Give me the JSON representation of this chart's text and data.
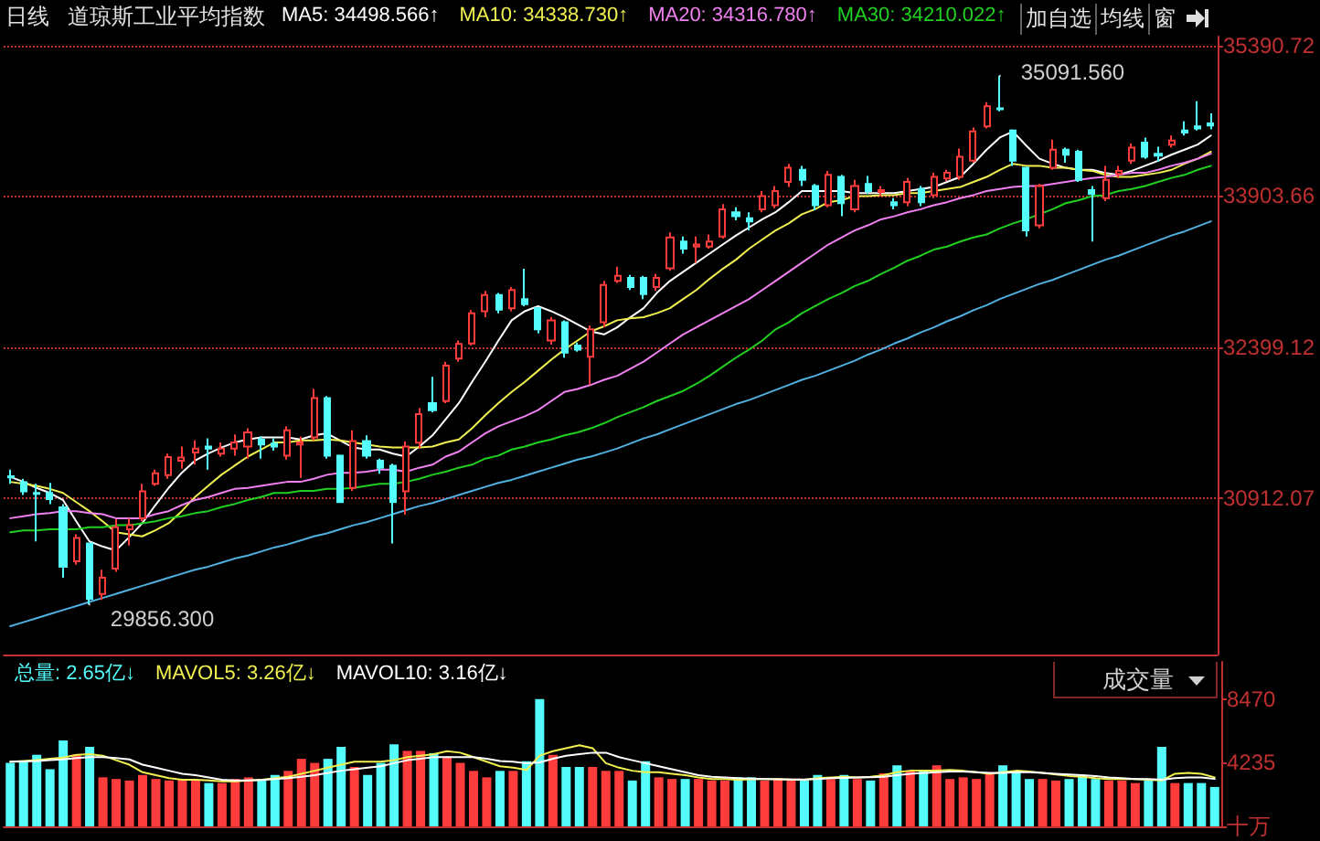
{
  "chart_data": [
    {
      "type": "candlestick",
      "title": "道琼斯工业平均指数",
      "subtitle": "日线",
      "categories": [
        null,
        null,
        null,
        null,
        null,
        null,
        null,
        null,
        null,
        null,
        null,
        null,
        null,
        null,
        null,
        null,
        null,
        null,
        null,
        null,
        null,
        null,
        null,
        null,
        null,
        null,
        null,
        null,
        null,
        null,
        null,
        null,
        null,
        null,
        null,
        null,
        null,
        null,
        null,
        null,
        null,
        null,
        null,
        null,
        null,
        null,
        null,
        null,
        null,
        null,
        null,
        null,
        null,
        null,
        null,
        null,
        null,
        null,
        null,
        null,
        null,
        null,
        null,
        null,
        null,
        null,
        null,
        null,
        null,
        null,
        null,
        null,
        null,
        null,
        null,
        null,
        null,
        null,
        null,
        null,
        null,
        null,
        null,
        null,
        null,
        null,
        null,
        null,
        null,
        null,
        null,
        null
      ],
      "ohlc": [
        [
          31125,
          31190,
          31050,
          31115
        ],
        [
          31066,
          31100,
          30940,
          30977
        ],
        [
          30960,
          31050,
          30480,
          30950
        ],
        [
          30960,
          31060,
          30850,
          30900
        ],
        [
          30817,
          30850,
          30120,
          30230
        ],
        [
          30283,
          30550,
          30250,
          30515
        ],
        [
          30460,
          30470,
          29856.3,
          29910
        ],
        [
          29960,
          30200,
          29900,
          30120
        ],
        [
          30212,
          30700,
          30180,
          30620
        ],
        [
          30600,
          30710,
          30440,
          30640
        ],
        [
          30710,
          31050,
          30680,
          30977
        ],
        [
          31050,
          31190,
          31030,
          31155
        ],
        [
          31137,
          31350,
          31100,
          31316
        ],
        [
          31280,
          31420,
          31200,
          31310
        ],
        [
          31360,
          31480,
          31240,
          31400
        ],
        [
          31420,
          31500,
          31190,
          31400
        ],
        [
          31350,
          31460,
          31320,
          31400
        ],
        [
          31400,
          31540,
          31330,
          31460
        ],
        [
          31420,
          31600,
          31300,
          31560
        ],
        [
          31490,
          31520,
          31300,
          31440
        ],
        [
          31450,
          31500,
          31380,
          31420
        ],
        [
          31330,
          31620,
          31290,
          31580
        ],
        [
          31440,
          31520,
          31110,
          31460
        ],
        [
          31510,
          31990,
          31480,
          31900
        ],
        [
          31900,
          31920,
          31300,
          31330
        ],
        [
          31330,
          31340,
          30860,
          30870
        ],
        [
          31010,
          31580,
          30980,
          31475
        ],
        [
          31475,
          31530,
          31300,
          31330
        ],
        [
          31280,
          31300,
          31150,
          31210
        ],
        [
          31230,
          31250,
          30460,
          30870
        ],
        [
          30977,
          31470,
          30746,
          31420
        ],
        [
          31458,
          31800,
          31400,
          31740
        ],
        [
          31850,
          32110,
          31760,
          31780
        ],
        [
          31870,
          32260,
          31850,
          32220
        ],
        [
          32290,
          32470,
          32260,
          32435
        ],
        [
          32440,
          32770,
          32420,
          32740
        ],
        [
          32760,
          32960,
          32700,
          32920
        ],
        [
          32920,
          32940,
          32740,
          32775
        ],
        [
          32790,
          33000,
          32760,
          32970
        ],
        [
          32880,
          33180,
          32810,
          32830
        ],
        [
          32790,
          32800,
          32540,
          32580
        ],
        [
          32470,
          32700,
          32430,
          32670
        ],
        [
          32650,
          32670,
          32300,
          32350
        ],
        [
          32420,
          32450,
          32360,
          32380
        ],
        [
          32310,
          32620,
          32030,
          32580
        ],
        [
          32650,
          33060,
          32600,
          33020
        ],
        [
          33060,
          33200,
          33040,
          33110
        ],
        [
          33090,
          33120,
          32970,
          33000
        ],
        [
          33090,
          33110,
          32880,
          32930
        ],
        [
          33000,
          33130,
          32960,
          33090
        ],
        [
          33185,
          33540,
          33160,
          33490
        ],
        [
          33450,
          33500,
          33330,
          33380
        ],
        [
          33400,
          33500,
          33240,
          33420
        ],
        [
          33400,
          33520,
          33380,
          33450
        ],
        [
          33500,
          33820,
          33480,
          33770
        ],
        [
          33740,
          33790,
          33660,
          33700
        ],
        [
          33680,
          33740,
          33560,
          33650
        ],
        [
          33770,
          33950,
          33740,
          33900
        ],
        [
          33810,
          34000,
          33780,
          33950
        ],
        [
          34040,
          34220,
          33990,
          34180
        ],
        [
          34160,
          34200,
          34000,
          34060
        ],
        [
          34000,
          34020,
          33760,
          33810
        ],
        [
          33810,
          34150,
          33790,
          34110
        ],
        [
          34090,
          34110,
          33700,
          33830
        ],
        [
          33770,
          34060,
          33740,
          34000
        ],
        [
          34020,
          34100,
          33920,
          33950
        ],
        [
          33940,
          34000,
          33900,
          33960
        ],
        [
          33840,
          33880,
          33770,
          33810
        ],
        [
          33840,
          34080,
          33800,
          34040
        ],
        [
          33970,
          34000,
          33800,
          33840
        ],
        [
          33910,
          34130,
          33880,
          34090
        ],
        [
          34075,
          34160,
          34050,
          34130
        ],
        [
          34090,
          34370,
          34060,
          34290
        ],
        [
          34250,
          34580,
          34230,
          34540
        ],
        [
          34590,
          34830,
          34570,
          34790
        ],
        [
          34770,
          35091.56,
          34740,
          34760
        ],
        [
          34550,
          34560,
          34200,
          34250
        ],
        [
          34180,
          34190,
          33500,
          33560
        ],
        [
          33610,
          34020,
          33580,
          34000
        ],
        [
          34180,
          34460,
          34160,
          34360
        ],
        [
          34360,
          34380,
          34230,
          34310
        ],
        [
          34340,
          34360,
          34040,
          34060
        ],
        [
          33960,
          34000,
          33450,
          33920
        ],
        [
          33880,
          34200,
          33850,
          34060
        ],
        [
          34120,
          34200,
          34080,
          34150
        ],
        [
          34250,
          34420,
          34220,
          34380
        ],
        [
          34430,
          34480,
          34270,
          34290
        ],
        [
          34320,
          34390,
          34240,
          34300
        ],
        [
          34410,
          34500,
          34380,
          34450
        ],
        [
          34550,
          34640,
          34500,
          34530
        ],
        [
          34590,
          34840,
          34550,
          34570
        ],
        [
          34620,
          34720,
          34560,
          34600
        ]
      ],
      "colors": [
        "#54fcfc",
        "#54fcfc",
        "#54fcfc",
        "#54fcfc",
        "#54fcfc",
        "#ff3c3c",
        "#54fcfc",
        "#ff3c3c",
        "#ff3c3c",
        "#ff3c3c",
        "#ff3c3c",
        "#ff3c3c",
        "#ff3c3c",
        "#ff3c3c",
        "#ff3c3c",
        "#54fcfc",
        "#ff3c3c",
        "#ff3c3c",
        "#ff3c3c",
        "#54fcfc",
        "#54fcfc",
        "#ff3c3c",
        "#ff3c3c",
        "#ff3c3c",
        "#54fcfc",
        "#54fcfc",
        "#ff3c3c",
        "#54fcfc",
        "#54fcfc",
        "#54fcfc",
        "#ff3c3c",
        "#ff3c3c",
        "#54fcfc",
        "#ff3c3c",
        "#ff3c3c",
        "#ff3c3c",
        "#ff3c3c",
        "#54fcfc",
        "#ff3c3c",
        "#54fcfc",
        "#54fcfc",
        "#ff3c3c",
        "#54fcfc",
        "#54fcfc",
        "#ff3c3c",
        "#ff3c3c",
        "#ff3c3c",
        "#54fcfc",
        "#54fcfc",
        "#ff3c3c",
        "#ff3c3c",
        "#54fcfc",
        "#ff3c3c",
        "#ff3c3c",
        "#ff3c3c",
        "#54fcfc",
        "#54fcfc",
        "#ff3c3c",
        "#ff3c3c",
        "#ff3c3c",
        "#54fcfc",
        "#54fcfc",
        "#ff3c3c",
        "#54fcfc",
        "#ff3c3c",
        "#54fcfc",
        "#ff3c3c",
        "#54fcfc",
        "#ff3c3c",
        "#54fcfc",
        "#ff3c3c",
        "#ff3c3c",
        "#ff3c3c",
        "#ff3c3c",
        "#ff3c3c",
        "#54fcfc",
        "#54fcfc",
        "#54fcfc",
        "#ff3c3c",
        "#ff3c3c",
        "#54fcfc",
        "#54fcfc",
        "#54fcfc",
        "#ff3c3c",
        "#ff3c3c",
        "#ff3c3c",
        "#54fcfc",
        "#54fcfc",
        "#ff3c3c",
        "#54fcfc",
        "#54fcfc",
        "#54fcfc"
      ],
      "series": [
        {
          "name": "MA5: 34498.566↑",
          "type": "line",
          "color": "#ffffff",
          "values": [
            31120,
            31070,
            31010,
            30960,
            30890,
            30680,
            30480,
            30430,
            30390,
            30520,
            30660,
            30840,
            31010,
            31160,
            31280,
            31350,
            31410,
            31460,
            31490,
            31510,
            31510,
            31510,
            31490,
            31530,
            31550,
            31480,
            31410,
            31390,
            31390,
            31350,
            31320,
            31420,
            31530,
            31690,
            31850,
            32060,
            32260,
            32470,
            32670,
            32760,
            32810,
            32760,
            32700,
            32630,
            32560,
            32530,
            32600,
            32700,
            32790,
            32940,
            33060,
            33150,
            33240,
            33330,
            33420,
            33510,
            33590,
            33670,
            33740,
            33840,
            33950,
            33950,
            33950,
            33950,
            33930,
            33930,
            33930,
            33930,
            33950,
            33970,
            33990,
            34040,
            34090,
            34220,
            34360,
            34480,
            34540,
            34400,
            34270,
            34220,
            34180,
            34160,
            34160,
            34130,
            34110,
            34150,
            34200,
            34250,
            34310,
            34360,
            34410,
            34500
          ]
        },
        {
          "name": "MA10: 34338.730↑",
          "type": "line",
          "color": "#f0f050",
          "values": [
            31070,
            31050,
            31030,
            31000,
            30960,
            30870,
            30780,
            30680,
            30570,
            30550,
            30530,
            30590,
            30660,
            30780,
            30920,
            31030,
            31140,
            31230,
            31320,
            31390,
            31460,
            31460,
            31480,
            31480,
            31490,
            31480,
            31460,
            31440,
            31420,
            31410,
            31410,
            31410,
            31420,
            31460,
            31490,
            31600,
            31730,
            31850,
            31960,
            32060,
            32170,
            32280,
            32380,
            32470,
            32560,
            32610,
            32670,
            32690,
            32700,
            32740,
            32790,
            32880,
            32970,
            33080,
            33180,
            33270,
            33380,
            33470,
            33560,
            33630,
            33720,
            33770,
            33840,
            33860,
            33900,
            33900,
            33910,
            33910,
            33930,
            33930,
            33950,
            33970,
            33990,
            34040,
            34090,
            34160,
            34220,
            34200,
            34200,
            34180,
            34180,
            34160,
            34150,
            34110,
            34090,
            34090,
            34110,
            34130,
            34160,
            34220,
            34270,
            34340
          ]
        },
        {
          "name": "MA20: 34316.780↑",
          "type": "line",
          "color": "#f080f0",
          "values": [
            30710,
            30730,
            30750,
            30760,
            30780,
            30780,
            30760,
            30750,
            30710,
            30710,
            30710,
            30750,
            30780,
            30840,
            30890,
            30920,
            30960,
            31000,
            31010,
            31030,
            31050,
            31070,
            31070,
            31100,
            31140,
            31160,
            31160,
            31170,
            31190,
            31190,
            31170,
            31210,
            31240,
            31320,
            31370,
            31460,
            31550,
            31620,
            31670,
            31720,
            31780,
            31870,
            31960,
            31990,
            32030,
            32080,
            32120,
            32190,
            32260,
            32350,
            32440,
            32530,
            32600,
            32670,
            32740,
            32810,
            32880,
            32970,
            33060,
            33150,
            33240,
            33330,
            33420,
            33490,
            33560,
            33610,
            33670,
            33700,
            33740,
            33770,
            33810,
            33840,
            33880,
            33910,
            33950,
            33970,
            33990,
            34000,
            34000,
            34020,
            34040,
            34060,
            34080,
            34090,
            34110,
            34130,
            34130,
            34160,
            34200,
            34230,
            34270,
            34320
          ]
        },
        {
          "name": "MA30: 34210.022↑",
          "type": "line",
          "color": "#20d020",
          "values": [
            30570,
            30590,
            30590,
            30600,
            30600,
            30600,
            30620,
            30620,
            30640,
            30640,
            30660,
            30680,
            30710,
            30730,
            30760,
            30780,
            30820,
            30850,
            30890,
            30920,
            30960,
            30960,
            30980,
            30980,
            31000,
            31000,
            31010,
            31030,
            31050,
            31050,
            31070,
            31100,
            31140,
            31170,
            31210,
            31240,
            31300,
            31330,
            31390,
            31420,
            31460,
            31490,
            31530,
            31560,
            31600,
            31650,
            31710,
            31760,
            31810,
            31870,
            31920,
            31970,
            32040,
            32120,
            32210,
            32300,
            32380,
            32470,
            32580,
            32650,
            32740,
            32810,
            32880,
            32940,
            33010,
            33060,
            33130,
            33190,
            33260,
            33310,
            33370,
            33400,
            33450,
            33490,
            33520,
            33580,
            33630,
            33670,
            33720,
            33770,
            33830,
            33860,
            33900,
            33910,
            33950,
            33970,
            34000,
            34040,
            34080,
            34110,
            34160,
            34200
          ]
        },
        {
          "type": "line",
          "color": "#50b0e0",
          "values": [
            29640,
            29680,
            29720,
            29760,
            29800,
            29840,
            29880,
            29920,
            29960,
            30000,
            30040,
            30080,
            30120,
            30160,
            30200,
            30230,
            30270,
            30310,
            30340,
            30380,
            30420,
            30450,
            30490,
            30530,
            30560,
            30600,
            30640,
            30670,
            30710,
            30750,
            30790,
            30830,
            30860,
            30900,
            30940,
            30980,
            31020,
            31060,
            31090,
            31130,
            31170,
            31210,
            31250,
            31290,
            31320,
            31360,
            31400,
            31450,
            31500,
            31540,
            31590,
            31640,
            31690,
            31740,
            31790,
            31840,
            31880,
            31930,
            31980,
            32030,
            32080,
            32120,
            32170,
            32220,
            32270,
            32330,
            32380,
            32440,
            32490,
            32550,
            32600,
            32660,
            32710,
            32770,
            32820,
            32880,
            32930,
            32980,
            33030,
            33070,
            33120,
            33170,
            33220,
            33270,
            33310,
            33360,
            33410,
            33460,
            33510,
            33550,
            33600,
            33650
          ]
        }
      ],
      "ylim": [
        29360,
        35480
      ],
      "yticks": [
        30912.07,
        32399.12,
        33903.66,
        35390.72
      ],
      "grid": "y",
      "legend": "top left",
      "tick_labels": "y",
      "line_style": "solid",
      "annotations": [
        "35091.560",
        "29856.300",
        "加自选",
        "均线",
        "窗"
      ]
    },
    {
      "type": "bar",
      "categories": [
        null,
        null,
        null,
        null,
        null,
        null,
        null,
        null,
        null,
        null,
        null,
        null,
        null,
        null,
        null,
        null,
        null,
        null,
        null,
        null,
        null,
        null,
        null,
        null,
        null,
        null,
        null,
        null,
        null,
        null,
        null,
        null,
        null,
        null,
        null,
        null,
        null,
        null,
        null,
        null,
        null,
        null,
        null,
        null,
        null,
        null,
        null,
        null,
        null,
        null,
        null,
        null,
        null,
        null,
        null,
        null,
        null,
        null,
        null,
        null,
        null,
        null,
        null,
        null,
        null,
        null,
        null,
        null,
        null,
        null,
        null,
        null,
        null,
        null,
        null,
        null,
        null,
        null,
        null,
        null,
        null,
        null,
        null,
        null,
        null,
        null,
        null,
        null,
        null,
        null,
        null,
        null
      ],
      "series": [
        {
          "name": "总量: 2.65亿↓",
          "values": [
            4220,
            4330,
            4760,
            3800,
            5720,
            4760,
            5290,
            3260,
            3150,
            3050,
            3420,
            3150,
            3050,
            3150,
            3050,
            2880,
            2880,
            3150,
            3260,
            3150,
            3420,
            3690,
            4490,
            4220,
            4490,
            5290,
            3950,
            3420,
            4220,
            5460,
            5020,
            5020,
            4870,
            4650,
            4220,
            3690,
            3260,
            3690,
            3690,
            4330,
            8470,
            4760,
            3950,
            3950,
            3950,
            3690,
            3690,
            3050,
            4330,
            3260,
            3150,
            3150,
            3150,
            3050,
            3050,
            3260,
            3260,
            3050,
            3150,
            3050,
            3050,
            3420,
            3150,
            3420,
            3150,
            3050,
            3530,
            4060,
            3690,
            3690,
            4060,
            3150,
            3260,
            3150,
            3590,
            4060,
            3690,
            3150,
            3150,
            3050,
            3150,
            3420,
            3150,
            3050,
            3050,
            2880,
            3050,
            5290,
            2880,
            2880,
            2880,
            2620
          ],
          "colors": [
            "#54fcfc",
            "#54fcfc",
            "#54fcfc",
            "#54fcfc",
            "#54fcfc",
            "#ff3c3c",
            "#54fcfc",
            "#ff3c3c",
            "#ff3c3c",
            "#ff3c3c",
            "#ff3c3c",
            "#ff3c3c",
            "#ff3c3c",
            "#ff3c3c",
            "#ff3c3c",
            "#54fcfc",
            "#ff3c3c",
            "#ff3c3c",
            "#ff3c3c",
            "#54fcfc",
            "#54fcfc",
            "#ff3c3c",
            "#ff3c3c",
            "#ff3c3c",
            "#54fcfc",
            "#54fcfc",
            "#ff3c3c",
            "#54fcfc",
            "#54fcfc",
            "#54fcfc",
            "#ff3c3c",
            "#ff3c3c",
            "#54fcfc",
            "#ff3c3c",
            "#ff3c3c",
            "#ff3c3c",
            "#ff3c3c",
            "#54fcfc",
            "#ff3c3c",
            "#54fcfc",
            "#54fcfc",
            "#ff3c3c",
            "#54fcfc",
            "#54fcfc",
            "#ff3c3c",
            "#ff3c3c",
            "#ff3c3c",
            "#54fcfc",
            "#54fcfc",
            "#ff3c3c",
            "#ff3c3c",
            "#54fcfc",
            "#ff3c3c",
            "#ff3c3c",
            "#ff3c3c",
            "#54fcfc",
            "#54fcfc",
            "#ff3c3c",
            "#ff3c3c",
            "#ff3c3c",
            "#54fcfc",
            "#54fcfc",
            "#ff3c3c",
            "#54fcfc",
            "#ff3c3c",
            "#54fcfc",
            "#ff3c3c",
            "#54fcfc",
            "#ff3c3c",
            "#54fcfc",
            "#ff3c3c",
            "#ff3c3c",
            "#ff3c3c",
            "#ff3c3c",
            "#ff3c3c",
            "#54fcfc",
            "#54fcfc",
            "#54fcfc",
            "#ff3c3c",
            "#ff3c3c",
            "#54fcfc",
            "#54fcfc",
            "#54fcfc",
            "#ff3c3c",
            "#ff3c3c",
            "#ff3c3c",
            "#54fcfc",
            "#54fcfc",
            "#ff3c3c",
            "#54fcfc",
            "#54fcfc",
            "#54fcfc"
          ]
        },
        {
          "name": "MAVOL5: 3.26亿↓",
          "type": "line",
          "color": "#f0f050",
          "values": [
            4300,
            4350,
            4400,
            4500,
            4570,
            4750,
            4800,
            4700,
            4400,
            4100,
            3600,
            3400,
            3200,
            3100,
            3100,
            3050,
            3000,
            3000,
            3050,
            3100,
            3200,
            3300,
            3500,
            3700,
            3900,
            4100,
            4300,
            4300,
            4300,
            4400,
            4600,
            4700,
            4800,
            5000,
            4900,
            4600,
            4300,
            4000,
            3900,
            3750,
            4700,
            5000,
            5200,
            5400,
            5200,
            4200,
            3900,
            3700,
            3600,
            3600,
            3500,
            3400,
            3250,
            3150,
            3150,
            3100,
            3130,
            3140,
            3150,
            3120,
            3100,
            3200,
            3250,
            3300,
            3250,
            3300,
            3400,
            3600,
            3700,
            3700,
            3700,
            3750,
            3700,
            3600,
            3500,
            3600,
            3700,
            3650,
            3550,
            3450,
            3350,
            3300,
            3200,
            3150,
            3150,
            3150,
            3100,
            3050,
            3500,
            3550,
            3500,
            3260
          ]
        },
        {
          "name": "MAVOL10: 3.16亿↓",
          "type": "line",
          "color": "#ffffff",
          "values": [
            4300,
            4320,
            4350,
            4400,
            4450,
            4550,
            4600,
            4600,
            4550,
            4450,
            4100,
            3900,
            3700,
            3500,
            3400,
            3250,
            3100,
            3050,
            3050,
            3080,
            3150,
            3200,
            3300,
            3400,
            3550,
            3700,
            3800,
            3900,
            4000,
            4200,
            4400,
            4500,
            4600,
            4600,
            4600,
            4600,
            4500,
            4350,
            4300,
            4200,
            4250,
            4500,
            4700,
            4800,
            4900,
            4900,
            4600,
            4400,
            4200,
            4000,
            3800,
            3600,
            3400,
            3300,
            3250,
            3200,
            3180,
            3150,
            3130,
            3120,
            3120,
            3150,
            3200,
            3220,
            3250,
            3270,
            3300,
            3400,
            3500,
            3550,
            3600,
            3650,
            3650,
            3600,
            3550,
            3550,
            3600,
            3600,
            3550,
            3500,
            3450,
            3400,
            3350,
            3250,
            3200,
            3150,
            3150,
            3100,
            3200,
            3250,
            3250,
            3160
          ]
        }
      ],
      "ylim": [
        0,
        10940
      ],
      "yticks": [
        {
          "value": 0,
          "label": "十万"
        },
        4235,
        8470
      ],
      "legend": "top left",
      "tick_labels": "y",
      "line_style": "solid",
      "annotations": [
        "成交量"
      ]
    }
  ]
}
